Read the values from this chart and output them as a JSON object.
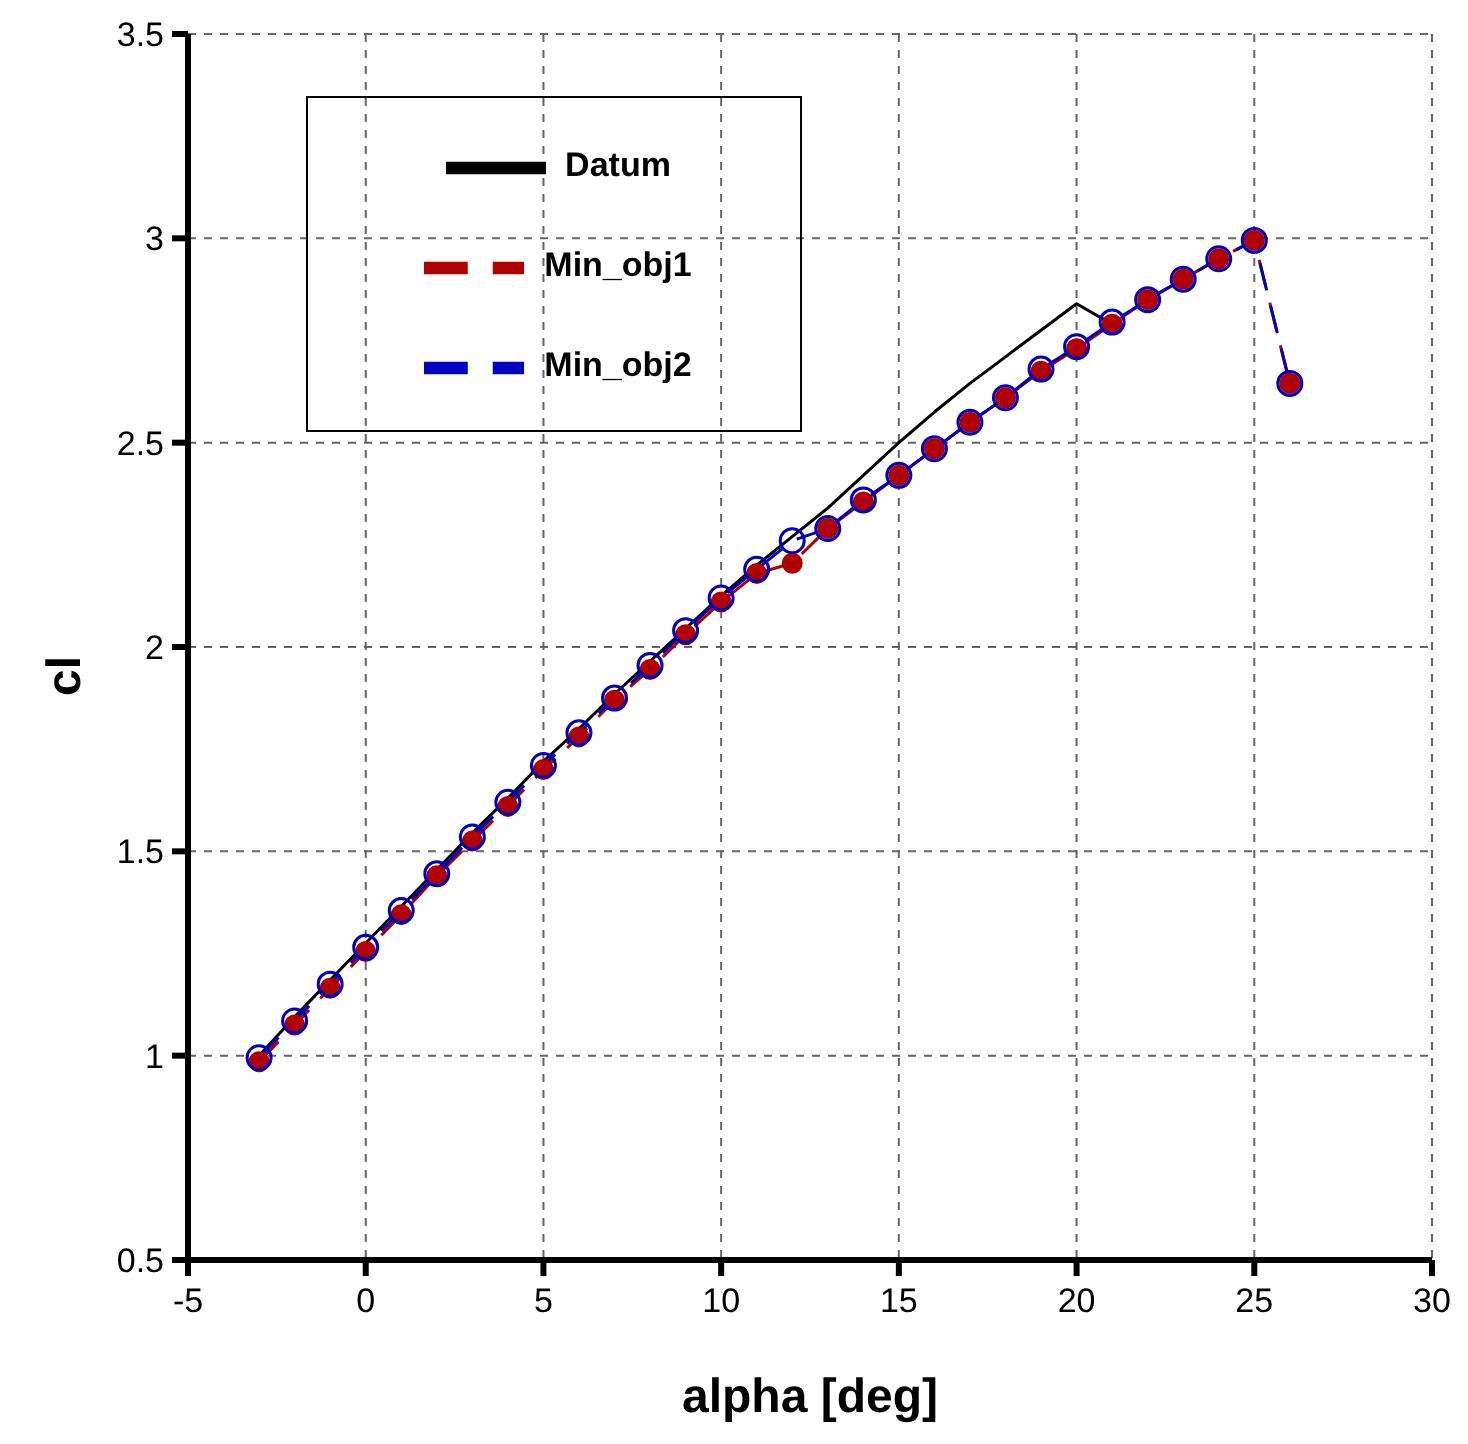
{
  "chart_data": {
    "type": "line",
    "xlabel": "alpha [deg]",
    "ylabel": "cl",
    "xlim": [
      -5,
      30
    ],
    "xticks": [
      -5,
      0,
      5,
      10,
      15,
      20,
      25,
      30
    ],
    "ylim": [
      0.5,
      3.5
    ],
    "yticks": [
      0.5,
      1,
      1.5,
      2,
      2.5,
      3,
      3.5
    ],
    "grid": true,
    "legend": "top left",
    "series": [
      {
        "name": "Datum",
        "color": "#000000",
        "line_style": "solid",
        "marker": "none",
        "x": [
          -3,
          -2,
          -1,
          0,
          1,
          2,
          3,
          4,
          5,
          6,
          7,
          8,
          9,
          10,
          11,
          12,
          13,
          14,
          15,
          16,
          17,
          18,
          19,
          20,
          21
        ],
        "values": [
          1.0,
          1.095,
          1.185,
          1.275,
          1.365,
          1.455,
          1.545,
          1.63,
          1.72,
          1.8,
          1.885,
          1.965,
          2.045,
          2.125,
          2.2,
          2.27,
          2.34,
          2.42,
          2.5,
          2.575,
          2.645,
          2.71,
          2.775,
          2.84,
          2.79
        ]
      },
      {
        "name": "Min_obj1",
        "color": "#b00000",
        "line_style": "dashed",
        "marker": "circle",
        "x": [
          -3,
          -2,
          -1,
          0,
          1,
          2,
          3,
          4,
          5,
          6,
          7,
          8,
          9,
          10,
          11,
          12,
          13,
          14,
          15,
          16,
          17,
          18,
          19,
          20,
          21,
          22,
          23,
          24,
          25,
          26
        ],
        "values": [
          0.985,
          1.075,
          1.165,
          1.255,
          1.345,
          1.44,
          1.525,
          1.61,
          1.7,
          1.78,
          1.87,
          1.945,
          2.03,
          2.11,
          2.18,
          2.205,
          2.29,
          2.355,
          2.42,
          2.485,
          2.55,
          2.61,
          2.675,
          2.73,
          2.79,
          2.85,
          2.9,
          2.95,
          2.995,
          2.645
        ]
      },
      {
        "name": "Min_obj2",
        "color": "#0000c0",
        "line_style": "dashed",
        "marker": "circle",
        "x": [
          -3,
          -2,
          -1,
          0,
          1,
          2,
          3,
          4,
          5,
          6,
          7,
          8,
          9,
          10,
          11,
          12,
          13,
          14,
          15,
          16,
          17,
          18,
          19,
          20,
          21,
          22,
          23,
          24,
          25,
          26
        ],
        "values": [
          0.995,
          1.085,
          1.175,
          1.265,
          1.355,
          1.445,
          1.535,
          1.62,
          1.71,
          1.79,
          1.875,
          1.955,
          2.04,
          2.12,
          2.19,
          2.26,
          2.29,
          2.36,
          2.42,
          2.485,
          2.55,
          2.61,
          2.68,
          2.735,
          2.795,
          2.85,
          2.9,
          2.95,
          2.995,
          2.645
        ]
      }
    ]
  }
}
